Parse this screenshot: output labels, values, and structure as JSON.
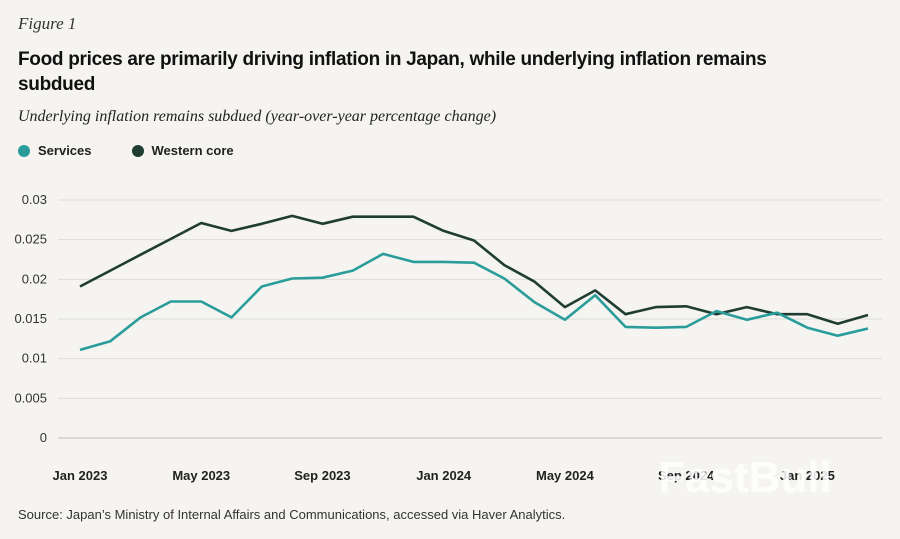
{
  "figure_label": "Figure 1",
  "title": "Food prices are primarily driving inflation in Japan, while underlying inflation remains subdued",
  "source": "Source: Japan’s Ministry of Internal Affairs and Communications, accessed via Haver Analytics.",
  "watermark": "FastBull",
  "chart_data": {
    "type": "line",
    "title": "Underlying inflation remains subdued (year-over-year percentage change)",
    "xlabel": "",
    "ylabel": "",
    "ylim": [
      0,
      0.03
    ],
    "yticks": [
      "0.03",
      "0.025",
      "0.02",
      "0.015",
      "0.01",
      "0.005",
      "0"
    ],
    "ytick_values": [
      0.03,
      0.025,
      0.02,
      0.015,
      0.01,
      0.005,
      0
    ],
    "xtick_labels": [
      "Jan 2023",
      "May 2023",
      "Sep 2023",
      "Jan 2024",
      "May 2024",
      "Sep 2024",
      "Jan 2025"
    ],
    "xtick_index": [
      0,
      4,
      8,
      12,
      16,
      20,
      24
    ],
    "x": [
      "Jan 2023",
      "Feb 2023",
      "Mar 2023",
      "Apr 2023",
      "May 2023",
      "Jun 2023",
      "Jul 2023",
      "Aug 2023",
      "Sep 2023",
      "Oct 2023",
      "Nov 2023",
      "Dec 2023",
      "Jan 2024",
      "Feb 2024",
      "Mar 2024",
      "Apr 2024",
      "May 2024",
      "Jun 2024",
      "Jul 2024",
      "Aug 2024",
      "Sep 2024",
      "Oct 2024",
      "Nov 2024",
      "Dec 2024",
      "Jan 2025",
      "Feb 2025",
      "Mar 2025"
    ],
    "grid": true,
    "legend_position": "top-left",
    "series": [
      {
        "name": "Services",
        "color": "#2a9d9a",
        "values": [
          0.0111,
          0.0122,
          0.0152,
          0.0172,
          0.0172,
          0.0152,
          0.0191,
          0.0201,
          0.0202,
          0.0211,
          0.0232,
          0.0222,
          0.0222,
          0.0221,
          0.0201,
          0.0171,
          0.0149,
          0.018,
          0.014,
          0.0139,
          0.014,
          0.016,
          0.0149,
          0.0158,
          0.0139,
          0.0129,
          0.0138
        ]
      },
      {
        "name": "Western core",
        "color": "#1f3d33",
        "values": [
          0.0191,
          0.0211,
          0.0231,
          0.0251,
          0.0271,
          0.0261,
          0.027,
          0.028,
          0.027,
          0.0279,
          0.0279,
          0.0279,
          0.0261,
          0.0249,
          0.0218,
          0.0197,
          0.0165,
          0.0186,
          0.0156,
          0.0165,
          0.0166,
          0.0156,
          0.0165,
          0.0156,
          0.0156,
          0.0144,
          0.0155
        ]
      }
    ]
  }
}
